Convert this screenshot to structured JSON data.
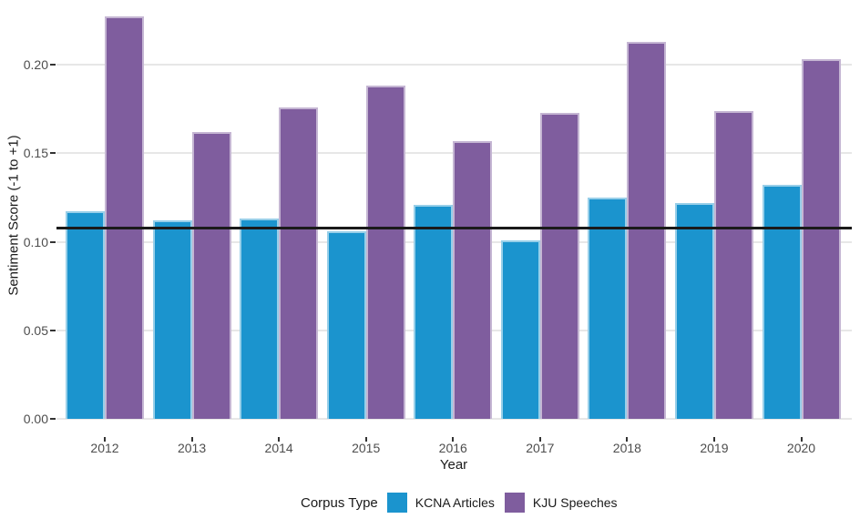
{
  "chart_data": {
    "type": "bar",
    "title": "",
    "xlabel": "Year",
    "ylabel": "Sentiment Score (-1 to +1)",
    "categories": [
      "2012",
      "2013",
      "2014",
      "2015",
      "2016",
      "2017",
      "2018",
      "2019",
      "2020"
    ],
    "series": [
      {
        "name": "KCNA Articles",
        "color": "#1B94CE",
        "values": [
          0.117,
          0.112,
          0.113,
          0.106,
          0.121,
          0.101,
          0.125,
          0.122,
          0.132
        ]
      },
      {
        "name": "KJU Speeches",
        "color": "#7F5D9E",
        "values": [
          0.227,
          0.162,
          0.176,
          0.188,
          0.157,
          0.173,
          0.213,
          0.174,
          0.203
        ]
      }
    ],
    "reference_line": 0.108,
    "y_ticks": [
      "0.00",
      "0.05",
      "0.10",
      "0.15",
      "0.20"
    ],
    "y_tick_values": [
      0,
      0.05,
      0.1,
      0.15,
      0.2
    ],
    "ylim": [
      0,
      0.2335
    ],
    "grid": "horizontal-major",
    "legend_title": "Corpus Type",
    "legend_position": "bottom",
    "colors": {
      "grid": "#E7E7E7",
      "axis_text": "#4D4D4D",
      "title_text": "#1A1A1A",
      "reference_line": "#1A1A1A",
      "background": "#FFFFFF"
    }
  }
}
